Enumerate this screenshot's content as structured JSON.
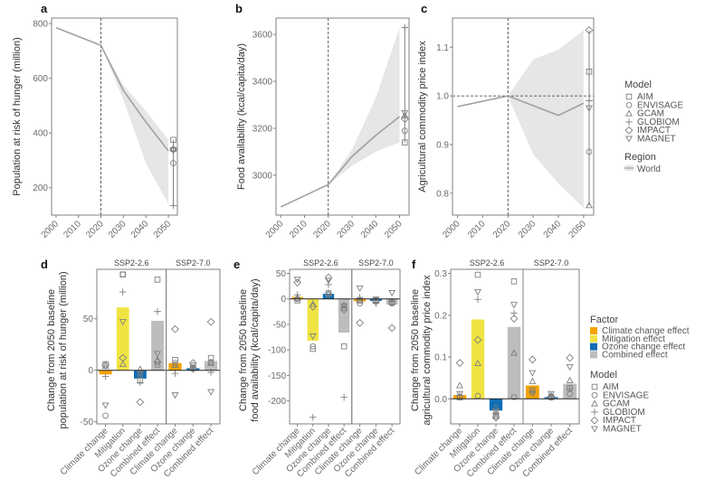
{
  "colors": {
    "climate": "#f5a300",
    "mitigation": "#f0e442",
    "ozone": "#0d6db5",
    "combined": "#bdbdbd",
    "line": "#a0a0a0",
    "ribbon": "#e6e6e6",
    "axis": "#555555",
    "marker": "#7f7f7f"
  },
  "legend_model": {
    "title": "Model",
    "items": [
      {
        "label": "AIM",
        "shape": "square"
      },
      {
        "label": "ENVISAGE",
        "shape": "circle"
      },
      {
        "label": "GCAM",
        "shape": "triangle-up"
      },
      {
        "label": "GLOBIOM",
        "shape": "plus"
      },
      {
        "label": "IMPACT",
        "shape": "diamond"
      },
      {
        "label": "MAGNET",
        "shape": "triangle-down"
      }
    ]
  },
  "legend_region": {
    "title": "Region",
    "items": [
      {
        "label": "World"
      }
    ]
  },
  "legend_factor": {
    "title": "Factor",
    "items": [
      {
        "label": "Climate change effect",
        "key": "climate"
      },
      {
        "label": "Mitigation effect",
        "key": "mitigation"
      },
      {
        "label": "Ozone change effect",
        "key": "ozone"
      },
      {
        "label": "Combined effect",
        "key": "combined"
      }
    ]
  },
  "chart_data": [
    {
      "panel": "a",
      "type": "line",
      "ylabel": "Population at risk of hunger (million)",
      "x": [
        2000,
        2020,
        2030,
        2040,
        2050
      ],
      "mean": [
        785,
        720,
        555,
        440,
        335
      ],
      "ribbon_low": [
        785,
        720,
        520,
        290,
        140
      ],
      "ribbon_high": [
        785,
        720,
        575,
        480,
        375
      ],
      "xticks": [
        2000,
        2010,
        2020,
        2030,
        2040,
        2050
      ],
      "yticks": [
        200,
        400,
        600,
        800
      ],
      "ylim": [
        100,
        820
      ],
      "xlim": [
        1998,
        2054
      ],
      "vline": 2020,
      "hline": null,
      "models_2050": {
        "AIM": 375,
        "ENVISAGE": 290,
        "GCAM": 342,
        "GLOBIOM": 135,
        "IMPACT": 340,
        "MAGNET": 338
      }
    },
    {
      "panel": "b",
      "type": "line",
      "ylabel": "Food availability (kcal/capita/day)",
      "x": [
        2000,
        2020,
        2030,
        2040,
        2050
      ],
      "mean": [
        2865,
        2960,
        3080,
        3170,
        3250
      ],
      "ribbon_low": [
        2865,
        2960,
        3040,
        3100,
        3140
      ],
      "ribbon_high": [
        2865,
        2960,
        3110,
        3330,
        3630
      ],
      "xticks": [
        2000,
        2010,
        2020,
        2030,
        2040,
        2050
      ],
      "yticks": [
        3000,
        3200,
        3400,
        3600
      ],
      "ylim": [
        2830,
        3670
      ],
      "xlim": [
        1998,
        2054
      ],
      "vline": 2020,
      "hline": null,
      "models_2050": {
        "AIM": 3140,
        "ENVISAGE": 3190,
        "GCAM": 3255,
        "GLOBIOM": 3630,
        "IMPACT": 3240,
        "MAGNET": 3265
      }
    },
    {
      "panel": "c",
      "type": "line",
      "ylabel": "Agricultural commodity price index",
      "x": [
        2000,
        2020,
        2030,
        2040,
        2050
      ],
      "mean": [
        0.978,
        1.0,
        0.98,
        0.96,
        0.985
      ],
      "ribbon_low": [
        0.978,
        1.0,
        0.88,
        0.82,
        0.77
      ],
      "ribbon_high": [
        0.978,
        1.0,
        1.075,
        1.095,
        1.135
      ],
      "xticks": [
        2000,
        2010,
        2020,
        2030,
        2040,
        2050
      ],
      "yticks": [
        0.8,
        0.9,
        1.0,
        1.1
      ],
      "ylim": [
        0.755,
        1.16
      ],
      "xlim": [
        1998,
        2054
      ],
      "vline": 2020,
      "hline": 1.0,
      "models_2050": {
        "AIM": 1.05,
        "ENVISAGE": 0.885,
        "GCAM": 0.775,
        "GLOBIOM": 0.99,
        "IMPACT": 1.135,
        "MAGNET": 0.975
      }
    },
    {
      "panel": "d",
      "type": "bar",
      "ylabel": "Change from 2050 baseline population at risk of hunger (million)",
      "facets": [
        "SSP2-2.6",
        "SSP2-7.0"
      ],
      "yticks": [
        -50,
        0,
        50
      ],
      "ylim": [
        -52,
        98
      ],
      "groups": [
        {
          "facet": 0,
          "category": "Climate change",
          "factor": "climate",
          "value": -4,
          "models": {
            "AIM": 6,
            "ENVISAGE": -44,
            "GCAM": 4,
            "GLOBIOM": -6,
            "IMPACT": 5,
            "MAGNET": -34
          }
        },
        {
          "facet": 0,
          "category": "Mitigation",
          "factor": "mitigation",
          "value": 61,
          "models": {
            "AIM": 93,
            "ENVISAGE": 93,
            "GCAM": 6,
            "GLOBIOM": 76,
            "IMPACT": 12,
            "MAGNET": 47
          }
        },
        {
          "facet": 0,
          "category": "Ozone change",
          "factor": "ozone",
          "value": -8,
          "models": {
            "AIM": -10,
            "ENVISAGE": -5,
            "GCAM": 1,
            "GLOBIOM": -12,
            "IMPACT": -31,
            "MAGNET": -3
          }
        },
        {
          "facet": 0,
          "category": "Combined effect",
          "factor": "combined",
          "value": 48,
          "models": {
            "AIM": 88,
            "ENVISAGE": 5,
            "GCAM": 10,
            "GLOBIOM": 57,
            "IMPACT": 8,
            "MAGNET": 16
          }
        },
        {
          "facet": 1,
          "category": "Climate change",
          "factor": "climate",
          "value": 7,
          "models": {
            "AIM": 10,
            "ENVISAGE": 7,
            "GCAM": 5,
            "GLOBIOM": -3,
            "IMPACT": 40,
            "MAGNET": -24
          }
        },
        {
          "facet": 1,
          "category": "Ozone change",
          "factor": "ozone",
          "value": 2,
          "models": {
            "AIM": 2,
            "ENVISAGE": 5,
            "GCAM": 3,
            "GLOBIOM": 1,
            "IMPACT": 7,
            "MAGNET": 1
          }
        },
        {
          "facet": 1,
          "category": "Combined effect",
          "factor": "combined",
          "value": 9,
          "models": {
            "AIM": 12,
            "ENVISAGE": 8,
            "GCAM": 7,
            "GLOBIOM": -2,
            "IMPACT": 47,
            "MAGNET": -21
          }
        }
      ]
    },
    {
      "panel": "e",
      "type": "bar",
      "ylabel": "Change from 2050 baseline food availability (kcal/capita/day)",
      "facets": [
        "SSP2-2.6",
        "SSP2-7.0"
      ],
      "yticks": [
        -200,
        -150,
        -100,
        -50,
        0,
        50
      ],
      "ylim": [
        -245,
        58
      ],
      "groups": [
        {
          "facet": 0,
          "category": "Climate change",
          "factor": "climate",
          "value": 4,
          "models": {
            "AIM": -3,
            "ENVISAGE": 0,
            "GCAM": 2,
            "GLOBIOM": 8,
            "IMPACT": 32,
            "MAGNET": 38
          }
        },
        {
          "facet": 0,
          "category": "Mitigation",
          "factor": "mitigation",
          "value": -82,
          "models": {
            "AIM": -98,
            "ENVISAGE": -93,
            "GCAM": -10,
            "GLOBIOM": -232,
            "IMPACT": -15,
            "MAGNET": -73
          }
        },
        {
          "facet": 0,
          "category": "Ozone change",
          "factor": "ozone",
          "value": 10,
          "models": {
            "AIM": 11,
            "ENVISAGE": 8,
            "GCAM": 12,
            "GLOBIOM": 28,
            "IMPACT": 42,
            "MAGNET": 36
          }
        },
        {
          "facet": 0,
          "category": "Combined effect",
          "factor": "combined",
          "value": -66,
          "models": {
            "AIM": -93,
            "ENVISAGE": -18,
            "GCAM": -12,
            "GLOBIOM": -193,
            "IMPACT": -21,
            "MAGNET": -14
          }
        },
        {
          "facet": 1,
          "category": "Climate change",
          "factor": "climate",
          "value": -5,
          "models": {
            "AIM": -4,
            "ENVISAGE": -9,
            "GCAM": -2,
            "GLOBIOM": 3,
            "IMPACT": -47,
            "MAGNET": 21
          }
        },
        {
          "facet": 1,
          "category": "Ozone change",
          "factor": "ozone",
          "value": -4,
          "models": {
            "AIM": -3,
            "ENVISAGE": -5,
            "GCAM": -2,
            "GLOBIOM": -9,
            "IMPACT": -4,
            "MAGNET": -1
          }
        },
        {
          "facet": 1,
          "category": "Combined effect",
          "factor": "combined",
          "value": -11,
          "models": {
            "AIM": -7,
            "ENVISAGE": -9,
            "GCAM": -6,
            "GLOBIOM": -5,
            "IMPACT": -57,
            "MAGNET": 12
          }
        }
      ]
    },
    {
      "panel": "f",
      "type": "bar",
      "ylabel": "Change from 2050 baseline agricultural commodity price index",
      "facets": [
        "SSP2-2.6",
        "SSP2-7.0"
      ],
      "yticks": [
        0.0,
        0.1,
        0.2,
        0.3
      ],
      "ylim": [
        -0.06,
        0.31
      ],
      "groups": [
        {
          "facet": 0,
          "category": "Climate change",
          "factor": "climate",
          "value": 0.009,
          "models": {
            "AIM": 0.003,
            "ENVISAGE": 0.005,
            "GCAM": 0.032,
            "GLOBIOM": 0.008,
            "IMPACT": 0.086,
            "MAGNET": 0.012
          }
        },
        {
          "facet": 0,
          "category": "Mitigation",
          "factor": "mitigation",
          "value": 0.19,
          "models": {
            "AIM": 0.297,
            "ENVISAGE": 0.007,
            "GCAM": 0.085,
            "GLOBIOM": 0.238,
            "IMPACT": 0.141,
            "MAGNET": 0.256
          }
        },
        {
          "facet": 0,
          "category": "Ozone change",
          "factor": "ozone",
          "value": -0.028,
          "models": {
            "AIM": -0.038,
            "ENVISAGE": -0.042,
            "GCAM": -0.02,
            "GLOBIOM": -0.035,
            "IMPACT": -0.045,
            "MAGNET": -0.03
          }
        },
        {
          "facet": 0,
          "category": "Combined effect",
          "factor": "combined",
          "value": 0.172,
          "models": {
            "AIM": 0.281,
            "ENVISAGE": 0.004,
            "GCAM": 0.11,
            "GLOBIOM": 0.205,
            "IMPACT": 0.192,
            "MAGNET": 0.225
          }
        },
        {
          "facet": 1,
          "category": "Climate change",
          "factor": "climate",
          "value": 0.032,
          "models": {
            "AIM": 0.02,
            "ENVISAGE": 0.014,
            "GCAM": 0.042,
            "GLOBIOM": 0.017,
            "IMPACT": 0.094,
            "MAGNET": 0.062
          }
        },
        {
          "facet": 1,
          "category": "Ozone change",
          "factor": "ozone",
          "value": 0.004,
          "models": {
            "AIM": 0.004,
            "ENVISAGE": 0.003,
            "GCAM": 0.008,
            "GLOBIOM": 0.006,
            "IMPACT": 0.005,
            "MAGNET": 0.012
          }
        },
        {
          "facet": 1,
          "category": "Combined effect",
          "factor": "combined",
          "value": 0.036,
          "models": {
            "AIM": 0.026,
            "ENVISAGE": 0.012,
            "GCAM": 0.044,
            "GLOBIOM": 0.024,
            "IMPACT": 0.098,
            "MAGNET": 0.076
          }
        }
      ]
    }
  ]
}
